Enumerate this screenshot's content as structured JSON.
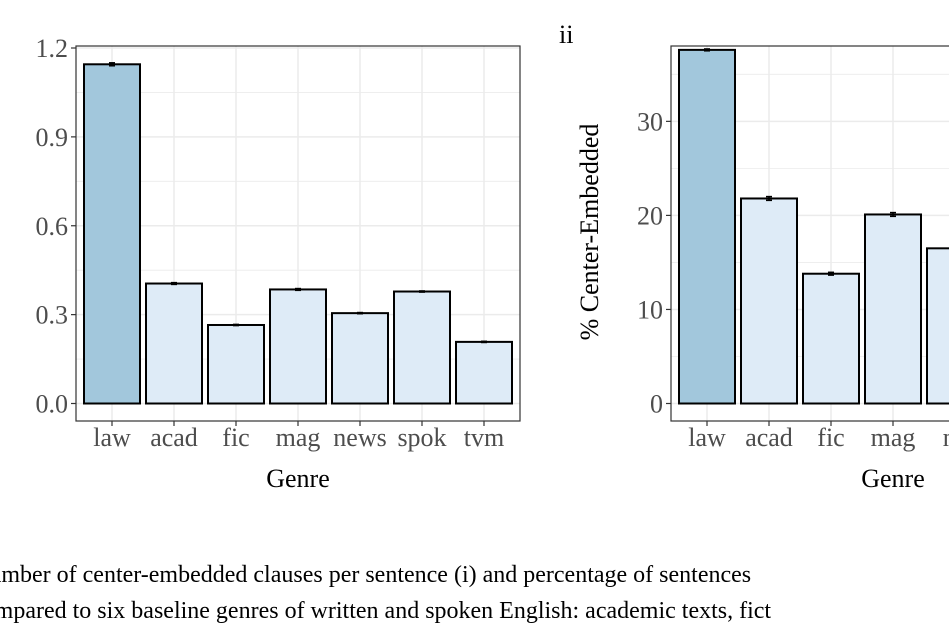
{
  "colors": {
    "highlight_fill": "#a2c7dc",
    "base_fill": "#deebf7",
    "bar_stroke": "#000000",
    "grid": "#ebebeb",
    "panel_border": "#333333",
    "tick_text": "#4d4d4d"
  },
  "panel_label_ii": "ii",
  "chart_data": [
    {
      "type": "bar",
      "categories": [
        "law",
        "acad",
        "fic",
        "mag",
        "news",
        "spok",
        "tvm"
      ],
      "values": [
        1.145,
        0.405,
        0.265,
        0.385,
        0.305,
        0.378,
        0.208
      ],
      "errors": [
        0.005,
        0.003,
        0.002,
        0.003,
        0.002,
        0.002,
        0.002
      ],
      "highlight": [
        "law"
      ],
      "xlabel": "Genre",
      "ylabel": "",
      "ylim": [
        0,
        1.2
      ],
      "yticks": [
        0.0,
        0.3,
        0.6,
        0.9,
        1.2
      ],
      "ytick_labels": [
        "0.0",
        "0.3",
        "0.6",
        "0.9",
        "1.2"
      ],
      "grid": true
    },
    {
      "type": "bar",
      "categories": [
        "law",
        "acad",
        "fic",
        "mag",
        "news"
      ],
      "category_labels": [
        "law",
        "acad",
        "fic",
        "mag",
        "ne"
      ],
      "values": [
        37.6,
        21.8,
        13.8,
        20.1,
        16.5
      ],
      "errors": [
        0.1,
        0.2,
        0.15,
        0.2,
        0.15
      ],
      "highlight": [
        "law"
      ],
      "xlabel": "Genre",
      "ylabel": "% Center-Embedded",
      "ylim": [
        0,
        37.8
      ],
      "yticks": [
        0,
        10,
        20,
        30
      ],
      "ytick_labels": [
        "0",
        "10",
        "20",
        "30"
      ],
      "grid": true
    }
  ],
  "caption": {
    "line1": "Number of center-embedded clauses per sentence (i) and percentage of sentences",
    "line2": "compared to six baseline genres of written and spoken English: academic texts, fict"
  }
}
